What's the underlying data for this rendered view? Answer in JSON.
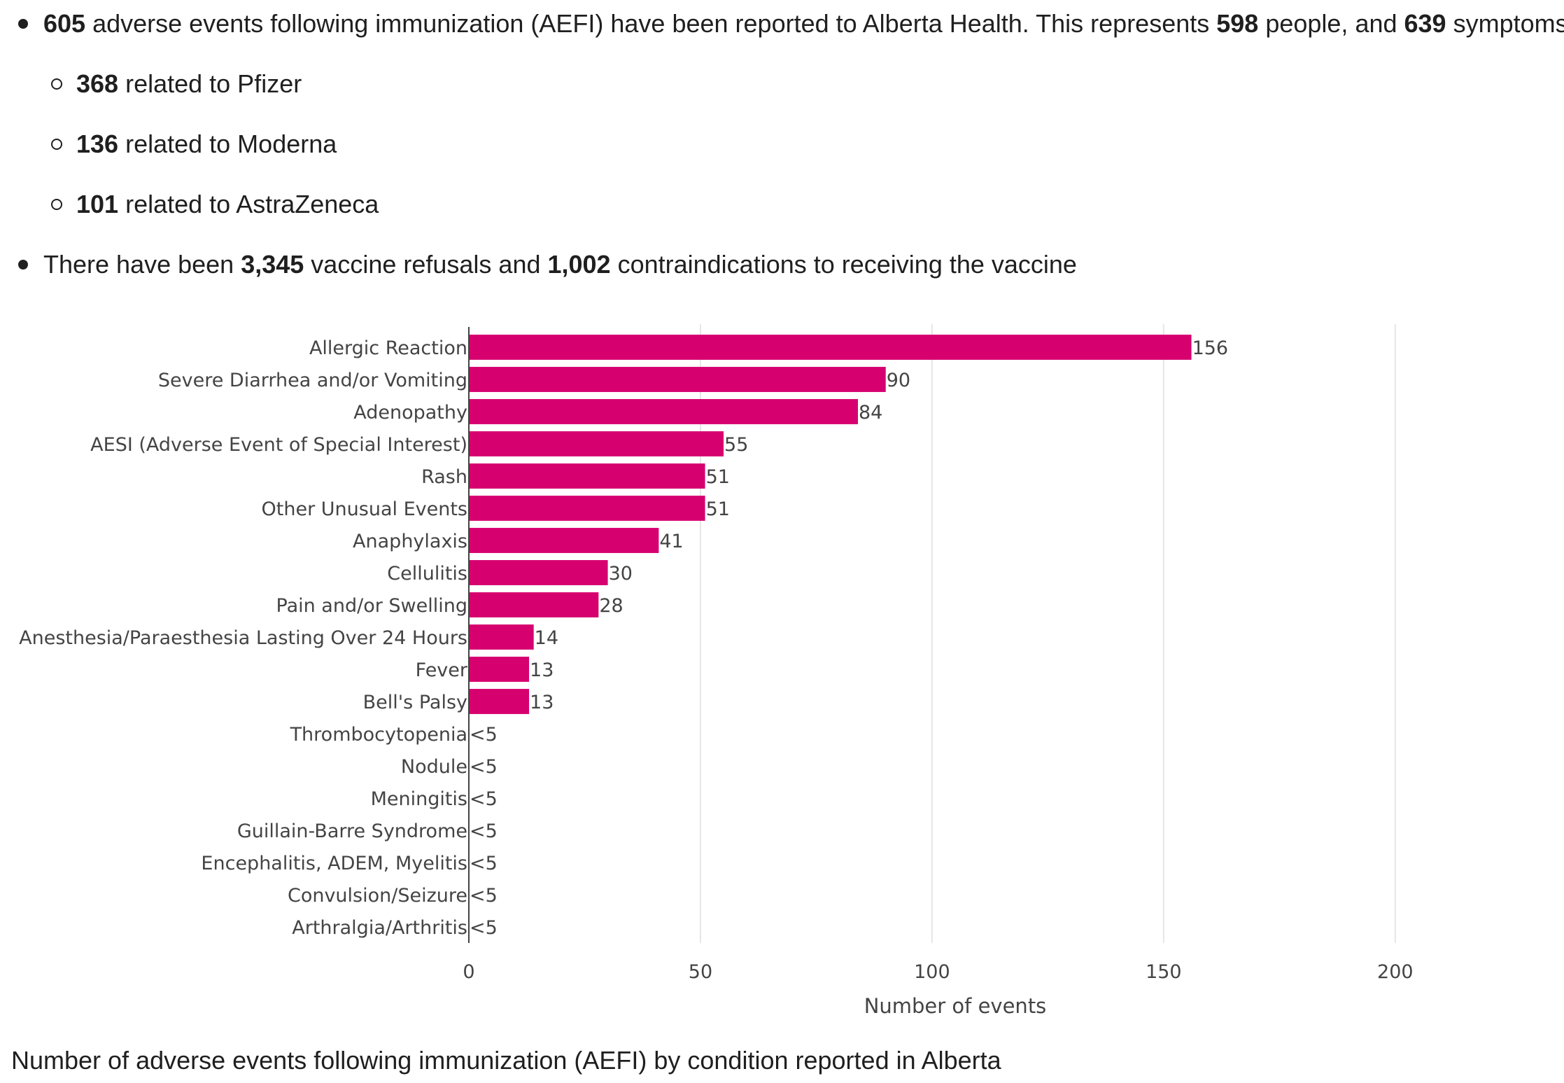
{
  "summary": {
    "line1": {
      "n_events": "605",
      "t1": " adverse events following immunization (AEFI) have been reported to Alberta Health. This represents ",
      "n_people": "598",
      "t2": " people, and ",
      "n_symptoms": "639",
      "t3": " symptoms."
    },
    "sub": [
      {
        "n": "368",
        "text": " related to Pfizer"
      },
      {
        "n": "136",
        "text": " related to Moderna"
      },
      {
        "n": "101",
        "text": " related to AstraZeneca"
      }
    ],
    "line2": {
      "t1": "There have been ",
      "n_refusals": "3,345",
      "t2": " vaccine refusals and ",
      "n_contra": "1,002",
      "t3": " contraindications to receiving the vaccine"
    }
  },
  "chart_data": {
    "type": "bar",
    "orientation": "horizontal",
    "categories": [
      "Allergic Reaction",
      "Severe Diarrhea and/or Vomiting",
      "Adenopathy",
      "AESI (Adverse Event of Special Interest)",
      "Rash",
      "Other Unusual Events",
      "Anaphylaxis",
      "Cellulitis",
      "Pain and/or Swelling",
      "Anesthesia/Paraesthesia Lasting Over 24 Hours",
      "Fever",
      "Bell's Palsy",
      "Thrombocytopenia",
      "Nodule",
      "Meningitis",
      "Guillain-Barre Syndrome",
      "Encephalitis, ADEM, Myelitis",
      "Convulsion/Seizure",
      "Arthralgia/Arthritis"
    ],
    "values": [
      156,
      90,
      84,
      55,
      51,
      51,
      41,
      30,
      28,
      14,
      13,
      13,
      0,
      0,
      0,
      0,
      0,
      0,
      0
    ],
    "value_labels": [
      "156",
      "90",
      "84",
      "55",
      "51",
      "51",
      "41",
      "30",
      "28",
      "14",
      "13",
      "13",
      "<5",
      "<5",
      "<5",
      "<5",
      "<5",
      "<5",
      "<5"
    ],
    "xlabel": "Number of events",
    "ylabel": "",
    "xlim": [
      0,
      210
    ],
    "xticks": [
      0,
      50,
      100,
      150,
      200
    ],
    "grid": true,
    "bar_color": "#d6006f",
    "title": "Number of adverse events following immunization (AEFI) by condition reported in Alberta"
  }
}
